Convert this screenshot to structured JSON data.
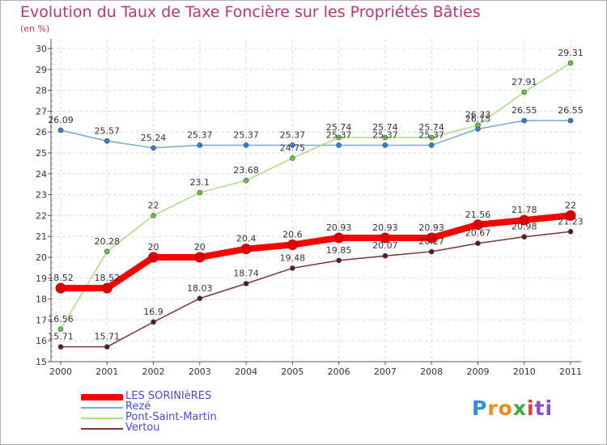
{
  "title": "Evolution du Taux de Taxe Foncière sur les Propriétés Bâties",
  "subtitle": "(en %)",
  "logo": {
    "text": "Proxiti",
    "parts": [
      "P",
      "ro",
      "x",
      "i",
      "ti"
    ]
  },
  "legend_entries": [
    "LES SORINIèRES",
    "Rezé",
    "Pont-Saint-Martin",
    "Vertou"
  ],
  "chart_data": {
    "type": "line",
    "title": "Evolution du Taux de Taxe Foncière sur les Propriétés Bâties",
    "ylabel": "(en %)",
    "xlabel": "",
    "x": [
      2000,
      2001,
      2002,
      2003,
      2004,
      2005,
      2006,
      2007,
      2008,
      2009,
      2010,
      2011
    ],
    "ylim": [
      15,
      30
    ],
    "yticks": [
      15,
      16,
      17,
      18,
      19,
      20,
      21,
      22,
      23,
      24,
      25,
      26,
      27,
      28,
      29,
      30
    ],
    "grid": true,
    "legend_position": "bottom-left",
    "series": [
      {
        "name": "Rezé",
        "color": "#7aa7cf",
        "marker": "#2e7fcf",
        "values": [
          26.09,
          25.57,
          25.24,
          25.37,
          25.37,
          25.37,
          25.37,
          25.37,
          25.37,
          26.15,
          26.55,
          26.55
        ]
      },
      {
        "name": "Pont-Saint-Martin",
        "color": "#a8e07a",
        "marker": "#6cc43a",
        "values": [
          16.56,
          20.28,
          22,
          23.1,
          23.68,
          24.75,
          25.74,
          25.74,
          25.74,
          26.33,
          27.91,
          29.31
        ]
      },
      {
        "name": "Vertou",
        "color": "#7a3535",
        "marker": "#5a1a1a",
        "values": [
          15.71,
          15.71,
          16.9,
          18.03,
          18.74,
          19.48,
          19.85,
          20.07,
          20.27,
          20.67,
          20.98,
          21.23
        ]
      },
      {
        "name": "LES SORINIèRES",
        "color": "#ff0000",
        "marker": "#dd0000",
        "values": [
          18.52,
          18.52,
          20,
          20,
          20.4,
          20.6,
          20.93,
          20.93,
          20.93,
          21.56,
          21.78,
          22
        ]
      }
    ]
  }
}
